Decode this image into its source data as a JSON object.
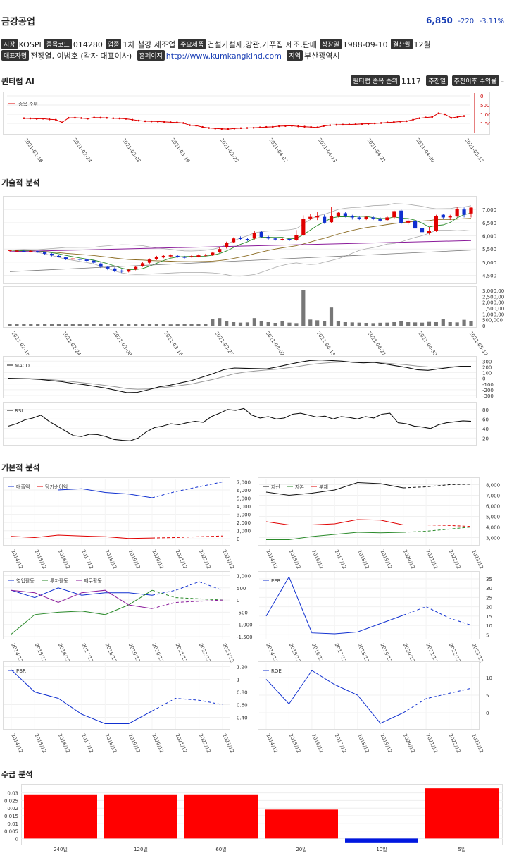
{
  "company": {
    "name": "금강공업",
    "price": "6,850",
    "change": "-220",
    "change_pct": "-3.11%"
  },
  "info_row1": [
    {
      "tag": "시장",
      "value": "KOSPI"
    },
    {
      "tag": "종목코드",
      "value": "014280"
    },
    {
      "tag": "업종",
      "value": "1차 철강 제조업"
    },
    {
      "tag": "주요제품",
      "value": "건설가설재,강관,거푸집 제조,판매"
    },
    {
      "tag": "상장일",
      "value": "1988-09-10"
    },
    {
      "tag": "결산월",
      "value": "12월"
    }
  ],
  "info_row2": {
    "ceo_tag": "대표자명",
    "ceo": "전장열, 이범호 (각자 대표이사)",
    "home_tag": "홈페이지",
    "home": "http://www.kumkangkind.com",
    "region_tag": "지역",
    "region": "부산광역시"
  },
  "sections": {
    "ai": "퀀티랩 AI",
    "tech": "기술적 분석",
    "fund": "기본적 분석",
    "supply": "수급 분석"
  },
  "ai_header": {
    "rank_tag": "퀀티랩 종목 순위",
    "rank": "1117",
    "rec_tag": "추천일",
    "since_tag": "추천이후 수익률",
    "since": "–"
  },
  "colors": {
    "up": "#e00000",
    "down": "#1030d0",
    "line_red": "#e00000",
    "line_blue": "#1030d0",
    "green": "#2a8a2a",
    "purple": "#8a1a9a"
  },
  "dates": [
    "2021-02-16",
    "2021-02-24",
    "2021-03-08",
    "2021-03-16",
    "2021-03-25",
    "2021-04-02",
    "2021-04-13",
    "2021-04-21",
    "2021-04-30",
    "2021-05-12"
  ],
  "rank_chart": {
    "legend": "종목 순위",
    "yticks": [
      "0",
      "500",
      "1,000",
      "1,500"
    ],
    "ylim": [
      2000,
      0
    ],
    "values": [
      1220,
      1230,
      1250,
      1240,
      1280,
      1300,
      1450,
      1200,
      1190,
      1210,
      1240,
      1180,
      1190,
      1200,
      1220,
      1230,
      1250,
      1300,
      1350,
      1380,
      1390,
      1400,
      1420,
      1440,
      1450,
      1480,
      1600,
      1620,
      1700,
      1750,
      1780,
      1800,
      1810,
      1780,
      1760,
      1750,
      1740,
      1720,
      1700,
      1690,
      1650,
      1640,
      1630,
      1660,
      1680,
      1700,
      1720,
      1640,
      1600,
      1580,
      1570,
      1560,
      1550,
      1530,
      1520,
      1500,
      1480,
      1450,
      1430,
      1400,
      1380,
      1300,
      1220,
      1180,
      1150,
      950,
      1000,
      1200,
      1150,
      1100
    ]
  },
  "price_chart": {
    "yticks": [
      "7,000",
      "6,500",
      "6,000",
      "5,500",
      "5,000",
      "4,500"
    ],
    "ylim": [
      4300,
      7300
    ],
    "candles": [
      [
        5440,
        5460,
        5400,
        5480
      ],
      [
        5420,
        5440,
        5390,
        5470
      ],
      [
        5430,
        5400,
        5380,
        5460
      ],
      [
        5400,
        5430,
        5370,
        5450
      ],
      [
        5420,
        5390,
        5360,
        5440
      ],
      [
        5380,
        5320,
        5290,
        5400
      ],
      [
        5320,
        5260,
        5220,
        5340
      ],
      [
        5240,
        5200,
        5180,
        5270
      ],
      [
        5180,
        5120,
        5080,
        5210
      ],
      [
        5100,
        5140,
        5060,
        5180
      ],
      [
        5130,
        5090,
        5050,
        5150
      ],
      [
        5100,
        5050,
        5010,
        5130
      ],
      [
        5060,
        4980,
        4940,
        5080
      ],
      [
        4950,
        4820,
        4780,
        4990
      ],
      [
        4820,
        4760,
        4700,
        4860
      ],
      [
        4760,
        4660,
        4620,
        4800
      ],
      [
        4680,
        4640,
        4590,
        4720
      ],
      [
        4640,
        4710,
        4610,
        4750
      ],
      [
        4720,
        4820,
        4690,
        4860
      ],
      [
        4850,
        4960,
        4820,
        5000
      ],
      [
        4980,
        5100,
        4950,
        5140
      ],
      [
        5120,
        5200,
        5080,
        5240
      ],
      [
        5180,
        5240,
        5150,
        5280
      ],
      [
        5220,
        5260,
        5180,
        5300
      ],
      [
        5240,
        5200,
        5170,
        5280
      ],
      [
        5200,
        5180,
        5140,
        5240
      ],
      [
        5200,
        5230,
        5170,
        5270
      ],
      [
        5210,
        5260,
        5180,
        5300
      ],
      [
        5250,
        5280,
        5220,
        5320
      ],
      [
        5260,
        5360,
        5240,
        5400
      ],
      [
        5380,
        5500,
        5350,
        5560
      ],
      [
        5560,
        5740,
        5520,
        5780
      ],
      [
        5760,
        5900,
        5720,
        5940
      ],
      [
        5920,
        5880,
        5840,
        5980
      ],
      [
        5880,
        5860,
        5800,
        5920
      ],
      [
        5900,
        6120,
        5860,
        6200
      ],
      [
        6150,
        5960,
        5920,
        6180
      ],
      [
        5960,
        5900,
        5860,
        6000
      ],
      [
        5900,
        5860,
        5820,
        5940
      ],
      [
        5860,
        5880,
        5820,
        5930
      ],
      [
        5880,
        5830,
        5800,
        5920
      ],
      [
        5840,
        6020,
        5800,
        6220
      ],
      [
        6040,
        6640,
        6000,
        6780
      ],
      [
        6660,
        6720,
        6600,
        6820
      ],
      [
        6700,
        6760,
        6600,
        6900
      ],
      [
        6720,
        6500,
        6460,
        6800
      ],
      [
        6520,
        6760,
        6480,
        7110
      ],
      [
        6760,
        6880,
        6700,
        6900
      ],
      [
        6860,
        6740,
        6700,
        6900
      ],
      [
        6740,
        6700,
        6620,
        6800
      ],
      [
        6700,
        6640,
        6600,
        6740
      ],
      [
        6640,
        6720,
        6600,
        6760
      ],
      [
        6700,
        6660,
        6600,
        6740
      ],
      [
        6660,
        6580,
        6540,
        6700
      ],
      [
        6600,
        6700,
        6560,
        6740
      ],
      [
        6700,
        6940,
        6650,
        6960
      ],
      [
        6960,
        6480,
        6440,
        7000
      ],
      [
        6500,
        6580,
        6420,
        6640
      ],
      [
        6580,
        6280,
        6240,
        6620
      ],
      [
        6300,
        6140,
        6080,
        6340
      ],
      [
        6100,
        6200,
        6050,
        6340
      ],
      [
        6200,
        6760,
        6150,
        6800
      ],
      [
        6800,
        6700,
        6650,
        6840
      ],
      [
        6700,
        6740,
        6600,
        6800
      ],
      [
        6740,
        7020,
        6700,
        7100
      ],
      [
        7000,
        6800,
        6700,
        7080
      ],
      [
        6850,
        7070,
        6700,
        7100
      ]
    ]
  },
  "volume_chart": {
    "yticks": [
      "3,000,000",
      "2,500,000",
      "2,000,000",
      "1,500,000",
      "1,000,000",
      "500,000",
      "0"
    ],
    "ymax": 3000000,
    "values": [
      150000,
      160000,
      140000,
      120000,
      150000,
      130000,
      140000,
      120000,
      110000,
      130000,
      150000,
      140000,
      130000,
      150000,
      180000,
      160000,
      140000,
      120000,
      130000,
      170000,
      150000,
      160000,
      120000,
      110000,
      130000,
      140000,
      150000,
      160000,
      180000,
      600000,
      650000,
      420000,
      300000,
      260000,
      280000,
      650000,
      400000,
      300000,
      240000,
      380000,
      260000,
      220000,
      3000000,
      520000,
      460000,
      380000,
      1550000,
      360000,
      300000,
      280000,
      260000,
      240000,
      220000,
      250000,
      260000,
      300000,
      380000,
      300000,
      280000,
      260000,
      320000,
      300000,
      560000,
      300000,
      280000,
      500000,
      420000
    ]
  },
  "macd_chart": {
    "legend": "MACD",
    "yticks": [
      "300",
      "200",
      "100",
      "0",
      "-100",
      "-200",
      "-300"
    ],
    "ylim": [
      -300,
      340
    ],
    "macd": [
      0,
      -5,
      -10,
      -20,
      -40,
      -60,
      -90,
      -110,
      -140,
      -170,
      -210,
      -250,
      -245,
      -200,
      -150,
      -120,
      -80,
      -40,
      20,
      80,
      150,
      180,
      175,
      170,
      165,
      200,
      240,
      280,
      310,
      320,
      310,
      300,
      280,
      270,
      280,
      250,
      220,
      190,
      150,
      140,
      165,
      190,
      210,
      210
    ],
    "signal": [
      0,
      -2,
      -6,
      -12,
      -24,
      -40,
      -60,
      -80,
      -100,
      -125,
      -150,
      -180,
      -190,
      -185,
      -170,
      -150,
      -125,
      -100,
      -60,
      -20,
      30,
      80,
      110,
      130,
      145,
      160,
      185,
      210,
      240,
      260,
      275,
      285,
      285,
      280,
      275,
      265,
      250,
      235,
      215,
      200,
      195,
      200,
      205,
      210
    ]
  },
  "rsi_chart": {
    "legend": "RSI",
    "yticks": [
      "80",
      "60",
      "40",
      "20"
    ],
    "ylim": [
      10,
      90
    ],
    "values": [
      45,
      50,
      58,
      62,
      68,
      55,
      45,
      35,
      25,
      23,
      28,
      27,
      23,
      17,
      15,
      14,
      20,
      33,
      42,
      45,
      50,
      48,
      52,
      55,
      53,
      65,
      72,
      80,
      78,
      82,
      68,
      62,
      65,
      60,
      62,
      70,
      72,
      68,
      64,
      66,
      60,
      65,
      63,
      60,
      65,
      62,
      70,
      72,
      52,
      50,
      45,
      43,
      40,
      48,
      52,
      54,
      56,
      55
    ]
  },
  "fund_years": [
    "2014/12",
    "2015/12",
    "2016/12",
    "2017/12",
    "2018/12",
    "2019/12",
    "2020/12",
    "2021/12",
    "2022/12",
    "2023/12"
  ],
  "fund_charts": [
    {
      "name": "sales",
      "legends": [
        "매출액",
        "당기순이익"
      ],
      "yticks": [
        "7,000",
        "6,000",
        "5,000",
        "4,000",
        "3,000",
        "2,000",
        "1,000",
        "0"
      ],
      "ylim": [
        -500,
        7300
      ],
      "series": [
        {
          "values": [
            null,
            null,
            6000,
            6150,
            5700,
            5500,
            5050,
            null,
            null,
            null
          ],
          "proj": [
            null,
            null,
            null,
            null,
            null,
            null,
            5050,
            5800,
            6400,
            7000
          ],
          "color": "#1030d0"
        },
        {
          "values": [
            300,
            150,
            450,
            350,
            250,
            50,
            100,
            null,
            null,
            null
          ],
          "proj": [
            null,
            null,
            null,
            null,
            null,
            null,
            100,
            150,
            250,
            350
          ],
          "color": "#e00000"
        }
      ]
    },
    {
      "name": "assets",
      "legends": [
        "자산",
        "자본",
        "부채"
      ],
      "yticks": [
        "8,000",
        "7,000",
        "6,000",
        "5,000",
        "4,000",
        "3,000"
      ],
      "ylim": [
        2500,
        8500
      ],
      "series": [
        {
          "values": [
            7300,
            7000,
            7200,
            7500,
            8200,
            8100,
            7700,
            null,
            null,
            null
          ],
          "proj": [
            null,
            null,
            null,
            null,
            null,
            null,
            7700,
            7800,
            8000,
            8050
          ],
          "color": "#111111"
        },
        {
          "values": [
            2800,
            2800,
            3100,
            3300,
            3500,
            3450,
            3500,
            null,
            null,
            null
          ],
          "proj": [
            null,
            null,
            null,
            null,
            null,
            null,
            3500,
            3600,
            3800,
            4000
          ],
          "color": "#2a8a2a"
        },
        {
          "values": [
            4500,
            4200,
            4200,
            4300,
            4700,
            4650,
            4200,
            null,
            null,
            null
          ],
          "proj": [
            null,
            null,
            null,
            null,
            null,
            null,
            4200,
            4200,
            4150,
            4050
          ],
          "color": "#e00000"
        }
      ]
    },
    {
      "name": "cashflow",
      "legends": [
        "영업활동",
        "투자활동",
        "재무활동"
      ],
      "yticks": [
        "1,000",
        "500",
        "0",
        "-500",
        "-1,000",
        "-1,500"
      ],
      "ylim": [
        -1500,
        1100
      ],
      "series": [
        {
          "values": [
            400,
            100,
            500,
            200,
            300,
            300,
            200,
            null,
            null,
            null
          ],
          "proj": [
            null,
            null,
            null,
            null,
            null,
            null,
            200,
            400,
            750,
            400
          ],
          "color": "#1030d0"
        },
        {
          "values": [
            -1400,
            -600,
            -500,
            -450,
            -600,
            -200,
            400,
            null,
            null,
            null
          ],
          "proj": [
            null,
            null,
            null,
            null,
            null,
            null,
            400,
            100,
            50,
            0
          ],
          "color": "#2a8a2a"
        },
        {
          "values": [
            400,
            300,
            -100,
            300,
            400,
            -200,
            -350,
            null,
            null,
            null
          ],
          "proj": [
            null,
            null,
            null,
            null,
            null,
            null,
            -350,
            -100,
            -50,
            0
          ],
          "color": "#8a1a9a"
        }
      ]
    },
    {
      "name": "per",
      "legends": [
        "PER"
      ],
      "yticks": [
        "35",
        "30",
        "25",
        "20",
        "15",
        "10",
        "5"
      ],
      "ylim": [
        4,
        38
      ],
      "series": [
        {
          "values": [
            15,
            36,
            6,
            5.5,
            6.5,
            11,
            15.5,
            null,
            null,
            null
          ],
          "proj": [
            null,
            null,
            null,
            null,
            null,
            null,
            15.5,
            20,
            14,
            10
          ],
          "color": "#1030d0"
        }
      ]
    },
    {
      "name": "pbr",
      "legends": [
        "PBR"
      ],
      "yticks": [
        "1.20",
        "1",
        "0.80",
        "0.60",
        "0.40"
      ],
      "ylim": [
        0.25,
        1.25
      ],
      "series": [
        {
          "values": [
            1.15,
            0.8,
            0.7,
            0.45,
            0.3,
            0.3,
            0.5,
            null,
            null,
            null
          ],
          "proj": [
            null,
            null,
            null,
            null,
            null,
            null,
            0.5,
            0.7,
            0.67,
            0.6
          ],
          "color": "#1030d0"
        }
      ]
    },
    {
      "name": "roe",
      "legends": [
        "ROE"
      ],
      "yticks": [
        "10",
        "5",
        "0"
      ],
      "ylim": [
        -4,
        14
      ],
      "series": [
        {
          "values": [
            9.5,
            2.5,
            12,
            8,
            5,
            -3,
            0,
            null,
            null,
            null
          ],
          "proj": [
            null,
            null,
            null,
            null,
            null,
            null,
            0,
            4,
            5.5,
            7
          ],
          "color": "#1030d0"
        }
      ]
    }
  ],
  "supply_chart": {
    "type": "bar",
    "categories": [
      "240일",
      "120일",
      "60일",
      "20일",
      "10일",
      "5일"
    ],
    "values": [
      0.029,
      0.029,
      0.029,
      0.019,
      -0.003,
      0.033
    ],
    "yticks": [
      "0.03",
      "0.025",
      "0.02",
      "0.015",
      "0.01",
      "0.005",
      "0"
    ],
    "ylim": [
      -0.004,
      0.034
    ]
  }
}
